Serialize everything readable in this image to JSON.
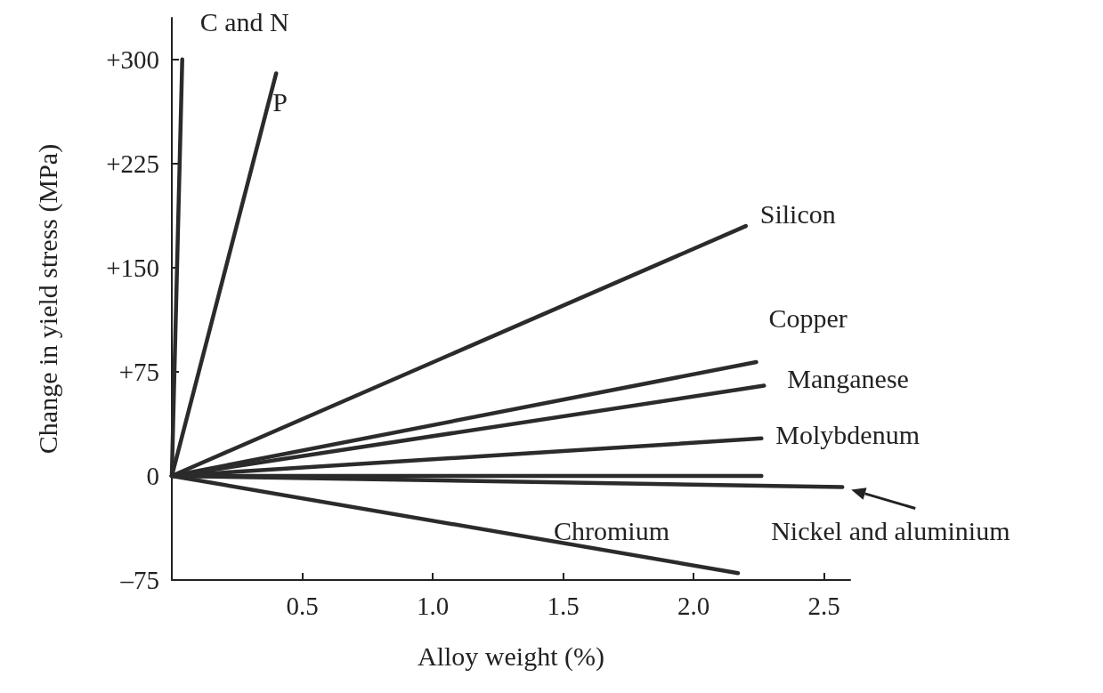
{
  "chart_data": {
    "type": "line",
    "xlabel": "Alloy weight (%)",
    "ylabel": "Change in yield stress (MPa)",
    "xlim": [
      0,
      2.6
    ],
    "xticks": [
      0.5,
      {
        "value": 1,
        "label": "1.0"
      },
      1.5,
      {
        "value": 2,
        "label": "2.0"
      },
      2.5
    ],
    "ylim": [
      -75,
      330
    ],
    "yticks": [
      {
        "value": -75,
        "label": "–75"
      },
      0,
      {
        "value": 75,
        "label": "+75"
      },
      {
        "value": 150,
        "label": "+150"
      },
      {
        "value": 225,
        "label": "+225"
      },
      {
        "value": 300,
        "label": "+300"
      }
    ],
    "annotations": [
      {
        "text": "Nickel and aluminium",
        "x": 2.57,
        "y": -8
      }
    ],
    "grid": false,
    "legend": false,
    "marker": "none",
    "line_style": "solid",
    "series": [
      {
        "name": "C and N",
        "color": "#2b2b2b",
        "x": [
          0,
          0.04
        ],
        "values": [
          0,
          300
        ]
      },
      {
        "name": "P",
        "color": "#2b2b2b",
        "x": [
          0,
          0.4
        ],
        "values": [
          0,
          290
        ]
      },
      {
        "name": "Silicon",
        "color": "#2b2b2b",
        "x": [
          0,
          2.2
        ],
        "values": [
          0,
          180
        ]
      },
      {
        "name": "Copper",
        "color": "#2b2b2b",
        "x": [
          0,
          2.24
        ],
        "values": [
          0,
          82
        ]
      },
      {
        "name": "Manganese",
        "color": "#2b2b2b",
        "x": [
          0,
          2.27
        ],
        "values": [
          0,
          65
        ]
      },
      {
        "name": "Molybdenum",
        "color": "#2b2b2b",
        "x": [
          0,
          2.26
        ],
        "values": [
          0,
          27
        ]
      },
      {
        "color": "#2b2b2b",
        "x": [
          0,
          2.26
        ],
        "values": [
          0,
          0
        ]
      },
      {
        "color": "#2b2b2b",
        "x": [
          0,
          2.57
        ],
        "values": [
          0,
          -8
        ]
      },
      {
        "name": "Chromium",
        "color": "#2b2b2b",
        "x": [
          0,
          2.17
        ],
        "values": [
          0,
          -70
        ]
      }
    ]
  }
}
